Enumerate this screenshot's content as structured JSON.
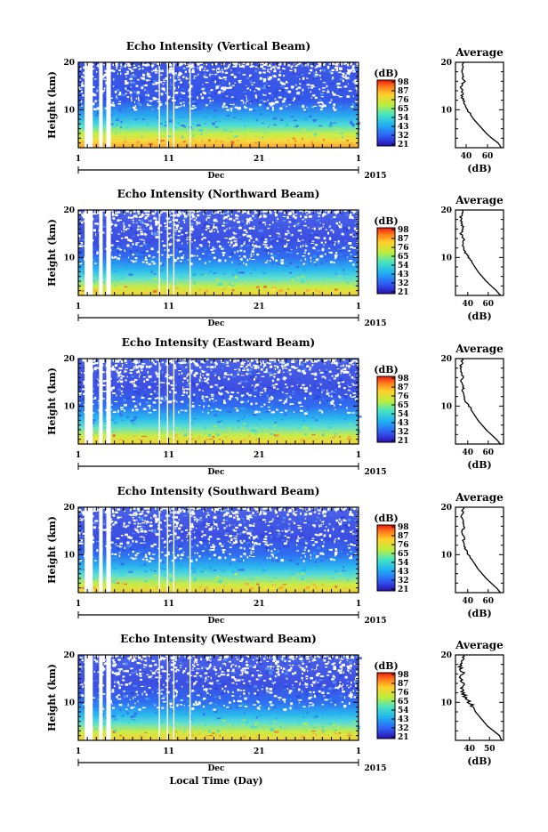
{
  "chart_data": [
    {
      "type": "heatmap",
      "title": "Echo Intensity (Vertical Beam)",
      "ylabel": "Height (km)",
      "ylim": [
        2,
        20
      ],
      "yticks": [
        "10",
        "20"
      ],
      "xlim": [
        1,
        32
      ],
      "xticks": [
        "1",
        "11",
        "21",
        "1"
      ],
      "month_label": "Dec",
      "year_label": "2015",
      "colorbar": {
        "unit": "(dB)",
        "ticks": [
          "98",
          "87",
          "76",
          "65",
          "54",
          "43",
          "32",
          "21"
        ]
      },
      "average_profile": {
        "title": "Average",
        "xlabel": "(dB)",
        "xticks": [
          "40",
          "60"
        ],
        "xlim": [
          30,
          75
        ],
        "heights": [
          2,
          3,
          4,
          5,
          6,
          7,
          8,
          9,
          10,
          11,
          12,
          13,
          14,
          15,
          16,
          17,
          18,
          19,
          20
        ],
        "values": [
          73,
          70,
          64,
          59,
          55,
          51,
          47,
          44,
          41,
          39,
          37,
          36,
          37,
          35,
          38,
          37,
          36,
          37,
          38
        ]
      }
    },
    {
      "type": "heatmap",
      "title": "Echo Intensity (Northward Beam)",
      "ylabel": "Height (km)",
      "ylim": [
        2,
        20
      ],
      "yticks": [
        "10",
        "20"
      ],
      "xlim": [
        1,
        32
      ],
      "xticks": [
        "1",
        "11",
        "21",
        "1"
      ],
      "month_label": "Dec",
      "year_label": "2015",
      "colorbar": {
        "unit": "(dB)",
        "ticks": [
          "98",
          "87",
          "76",
          "65",
          "54",
          "43",
          "32",
          "21"
        ]
      },
      "average_profile": {
        "title": "Average",
        "xlabel": "(dB)",
        "xticks": [
          "40",
          "60"
        ],
        "xlim": [
          28,
          75
        ],
        "heights": [
          2,
          3,
          4,
          5,
          6,
          7,
          8,
          9,
          10,
          11,
          12,
          13,
          14,
          15,
          16,
          17,
          18,
          19,
          20
        ],
        "values": [
          72,
          68,
          63,
          58,
          54,
          50,
          47,
          44,
          41,
          38,
          36,
          35,
          36,
          33,
          36,
          34,
          33,
          34,
          35
        ]
      }
    },
    {
      "type": "heatmap",
      "title": "Echo Intensity (Eastward Beam)",
      "ylabel": "Height (km)",
      "ylim": [
        2,
        20
      ],
      "yticks": [
        "10",
        "20"
      ],
      "xlim": [
        1,
        32
      ],
      "xticks": [
        "1",
        "11",
        "21",
        "1"
      ],
      "month_label": "Dec",
      "year_label": "2015",
      "colorbar": {
        "unit": "(dB)",
        "ticks": [
          "98",
          "87",
          "76",
          "65",
          "54",
          "43",
          "32",
          "21"
        ]
      },
      "average_profile": {
        "title": "Average",
        "xlabel": "(dB)",
        "xticks": [
          "40",
          "60"
        ],
        "xlim": [
          28,
          75
        ],
        "heights": [
          2,
          3,
          4,
          5,
          6,
          7,
          8,
          9,
          10,
          11,
          12,
          13,
          14,
          15,
          16,
          17,
          18,
          19,
          20
        ],
        "values": [
          72,
          68,
          63,
          58,
          54,
          50,
          47,
          44,
          41,
          38,
          36,
          35,
          36,
          33,
          36,
          34,
          33,
          34,
          35
        ]
      }
    },
    {
      "type": "heatmap",
      "title": "Echo Intensity (Southward Beam)",
      "ylabel": "Height (km)",
      "ylim": [
        2,
        20
      ],
      "yticks": [
        "10",
        "20"
      ],
      "xlim": [
        1,
        32
      ],
      "xticks": [
        "1",
        "11",
        "21",
        "1"
      ],
      "month_label": "Dec",
      "year_label": "2015",
      "colorbar": {
        "unit": "(dB)",
        "ticks": [
          "98",
          "87",
          "76",
          "65",
          "54",
          "43",
          "32",
          "21"
        ]
      },
      "average_profile": {
        "title": "Average",
        "xlabel": "(dB)",
        "xticks": [
          "40",
          "60"
        ],
        "xlim": [
          28,
          75
        ],
        "heights": [
          2,
          3,
          4,
          5,
          6,
          7,
          8,
          9,
          10,
          11,
          12,
          13,
          14,
          15,
          16,
          17,
          18,
          19,
          20
        ],
        "values": [
          72,
          68,
          63,
          58,
          54,
          50,
          47,
          44,
          41,
          38,
          37,
          36,
          36,
          34,
          37,
          35,
          34,
          35,
          36
        ]
      }
    },
    {
      "type": "heatmap",
      "title": "Echo Intensity (Westward Beam)",
      "ylabel": "Height (km)",
      "ylim": [
        2,
        20
      ],
      "yticks": [
        "10",
        "20"
      ],
      "xlim": [
        1,
        32
      ],
      "xticks": [
        "1",
        "11",
        "21",
        "1"
      ],
      "month_label": "Dec",
      "year_label": "2015",
      "xlabel": "Local Time (Day)",
      "colorbar": {
        "unit": "(dB)",
        "ticks": [
          "98",
          "87",
          "76",
          "65",
          "54",
          "43",
          "32",
          "21"
        ]
      },
      "average_profile": {
        "title": "Average",
        "xlabel": "(dB)",
        "xticks": [
          "40",
          "50"
        ],
        "xlim": [
          33,
          57
        ],
        "heights": [
          2,
          3,
          4,
          5,
          6,
          7,
          8,
          9,
          10,
          11,
          12,
          13,
          14,
          15,
          16,
          17,
          18,
          19,
          20
        ],
        "values": [
          56,
          55,
          52,
          49,
          47,
          45,
          43,
          42,
          40,
          38,
          37,
          36,
          37,
          35,
          37,
          36,
          35,
          36,
          37
        ]
      }
    }
  ]
}
